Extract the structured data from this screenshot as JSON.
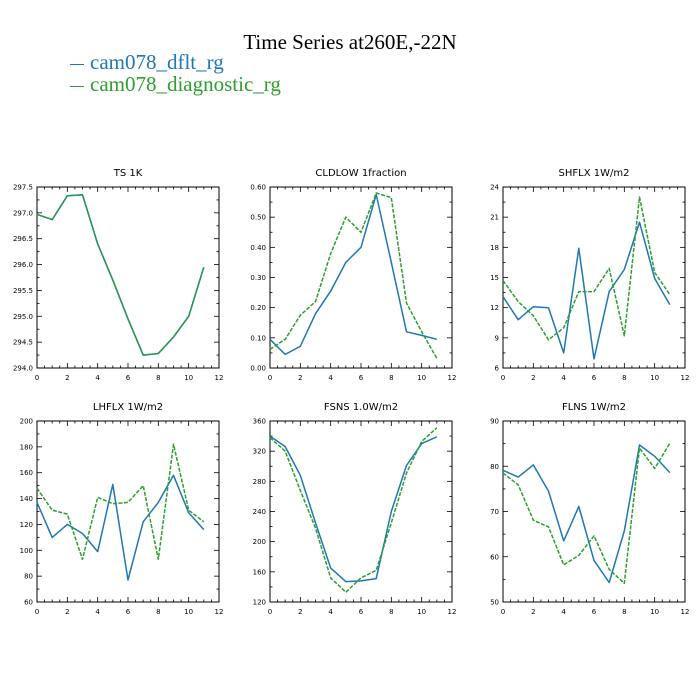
{
  "title": "Time Series at260E,-22N",
  "legend": [
    {
      "label": "cam078_dflt_rg",
      "color": "#1f77b4"
    },
    {
      "label": "cam078_diagnostic_rg",
      "color": "#2ca02c"
    }
  ],
  "chart_data": [
    {
      "type": "line",
      "title": "TS   1K",
      "xlim": [
        0,
        12
      ],
      "xticks": [
        0,
        2,
        4,
        6,
        8,
        10,
        12
      ],
      "ylim": [
        294.0,
        297.5
      ],
      "yticks": [
        "294.0",
        "294.5",
        "295.0",
        "295.5",
        "296.0",
        "296.5",
        "297.0",
        "297.5"
      ],
      "x": [
        0,
        1,
        2,
        3,
        4,
        5,
        6,
        7,
        8,
        9,
        10,
        11
      ],
      "series": [
        {
          "name": "cam078_dflt_rg",
          "values": [
            296.97,
            296.87,
            297.33,
            297.35,
            296.4,
            295.7,
            294.95,
            294.25,
            294.28,
            294.6,
            295.0,
            295.95
          ]
        },
        {
          "name": "cam078_diagnostic_rg",
          "values": [
            296.97,
            296.87,
            297.33,
            297.35,
            296.4,
            295.7,
            294.95,
            294.25,
            294.28,
            294.6,
            295.0,
            295.95
          ]
        }
      ]
    },
    {
      "type": "line",
      "title": "CLDLOW   1fraction",
      "xlim": [
        0,
        12
      ],
      "xticks": [
        0,
        2,
        4,
        6,
        8,
        10,
        12
      ],
      "ylim": [
        0.0,
        0.6
      ],
      "yticks": [
        "0.00",
        "0.10",
        "0.20",
        "0.30",
        "0.40",
        "0.50",
        "0.60"
      ],
      "x": [
        0,
        1,
        2,
        3,
        4,
        5,
        6,
        7,
        8,
        9,
        10,
        11
      ],
      "series": [
        {
          "name": "cam078_dflt_rg",
          "values": [
            0.095,
            0.045,
            0.072,
            0.18,
            0.255,
            0.35,
            0.4,
            0.575,
            0.35,
            0.12,
            0.108,
            0.095
          ]
        },
        {
          "name": "cam078_diagnostic_rg",
          "values": [
            0.062,
            0.095,
            0.175,
            0.22,
            0.38,
            0.5,
            0.45,
            0.58,
            0.565,
            0.215,
            0.12,
            0.032
          ]
        }
      ]
    },
    {
      "type": "line",
      "title": "SHFLX   1W/m2",
      "xlim": [
        0,
        12
      ],
      "xticks": [
        0,
        2,
        4,
        6,
        8,
        10,
        12
      ],
      "ylim": [
        6,
        24
      ],
      "yticks": [
        "6",
        "9",
        "12",
        "15",
        "18",
        "21",
        "24"
      ],
      "x": [
        0,
        1,
        2,
        3,
        4,
        5,
        6,
        7,
        8,
        9,
        10,
        11
      ],
      "series": [
        {
          "name": "cam078_dflt_rg",
          "values": [
            13.1,
            10.8,
            12.1,
            12.0,
            7.5,
            17.9,
            6.9,
            13.6,
            15.8,
            20.5,
            14.9,
            12.3
          ]
        },
        {
          "name": "cam078_diagnostic_rg",
          "values": [
            14.7,
            12.6,
            11.2,
            8.8,
            10.0,
            13.6,
            13.6,
            15.9,
            9.2,
            23.0,
            15.5,
            13.3
          ]
        }
      ]
    },
    {
      "type": "line",
      "title": "LHFLX   1W/m2",
      "xlim": [
        0,
        12
      ],
      "xticks": [
        0,
        2,
        4,
        6,
        8,
        10,
        12
      ],
      "ylim": [
        60,
        200
      ],
      "yticks": [
        "60",
        "80",
        "100",
        "120",
        "140",
        "160",
        "180",
        "200"
      ],
      "x": [
        0,
        1,
        2,
        3,
        4,
        5,
        6,
        7,
        8,
        9,
        10,
        11
      ],
      "series": [
        {
          "name": "cam078_dflt_rg",
          "values": [
            137,
            110,
            120,
            113,
            99,
            151,
            77,
            122,
            137,
            158,
            129,
            116
          ]
        },
        {
          "name": "cam078_diagnostic_rg",
          "values": [
            148,
            131,
            128,
            93,
            141,
            136,
            137,
            150,
            93,
            182,
            131,
            122
          ]
        }
      ]
    },
    {
      "type": "line",
      "title": "FSNS   1.0W/m2",
      "xlim": [
        0,
        12
      ],
      "xticks": [
        0,
        2,
        4,
        6,
        8,
        10,
        12
      ],
      "ylim": [
        120,
        360
      ],
      "yticks": [
        "120",
        "160",
        "200",
        "240",
        "280",
        "320",
        "360"
      ],
      "x": [
        0,
        1,
        2,
        3,
        4,
        5,
        6,
        7,
        8,
        9,
        10,
        11
      ],
      "series": [
        {
          "name": "cam078_dflt_rg",
          "values": [
            340,
            326,
            288,
            225,
            165,
            147,
            148,
            151,
            240,
            301,
            330,
            339
          ]
        },
        {
          "name": "cam078_diagnostic_rg",
          "values": [
            338,
            320,
            268,
            218,
            152,
            133,
            152,
            162,
            225,
            291,
            333,
            351
          ]
        }
      ]
    },
    {
      "type": "line",
      "title": "FLNS   1W/m2",
      "xlim": [
        0,
        12
      ],
      "xticks": [
        0,
        2,
        4,
        6,
        8,
        10,
        12
      ],
      "ylim": [
        50,
        90
      ],
      "yticks": [
        "50",
        "60",
        "70",
        "80",
        "90"
      ],
      "x": [
        0,
        1,
        2,
        3,
        4,
        5,
        6,
        7,
        8,
        9,
        10,
        11
      ],
      "series": [
        {
          "name": "cam078_dflt_rg",
          "values": [
            79.1,
            77.6,
            80.3,
            74.5,
            63.5,
            71.1,
            59.2,
            54.3,
            65.7,
            84.7,
            82.2,
            78.6
          ]
        },
        {
          "name": "cam078_diagnostic_rg",
          "values": [
            78.5,
            75.9,
            68.1,
            66.6,
            58.2,
            60.3,
            64.6,
            57.2,
            54.1,
            84.0,
            79.5,
            85.1
          ]
        }
      ]
    }
  ]
}
